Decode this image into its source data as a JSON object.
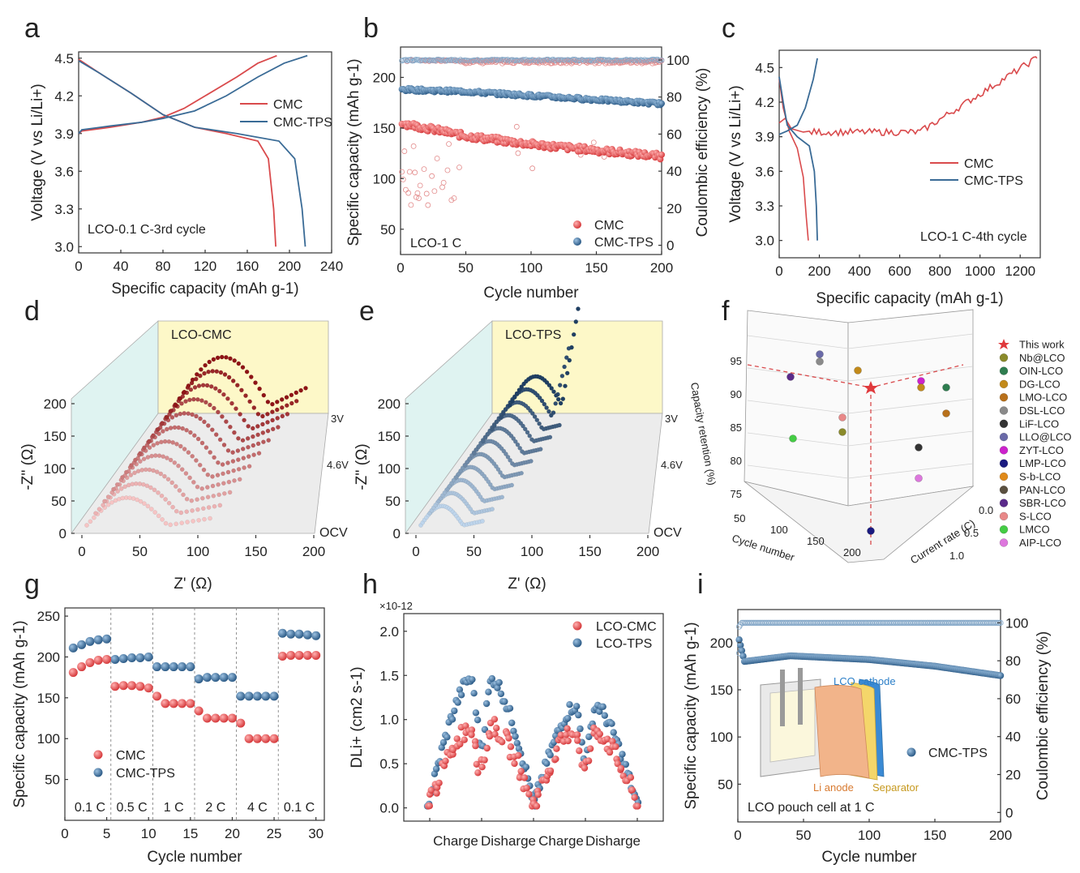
{
  "panels": {
    "a": "a",
    "b": "b",
    "c": "c",
    "d": "d",
    "e": "e",
    "f": "f",
    "g": "g",
    "h": "h",
    "i": "i"
  },
  "colors": {
    "cmc": "#d94a4c",
    "tps": "#3a6b96"
  },
  "chart_data": [
    {
      "id": "a",
      "type": "line",
      "title": "",
      "xlabel": "Specific capacity (mAh g-1)",
      "ylabel": "Voltage (V vs Li/Li+)",
      "xlim": [
        0,
        240
      ],
      "ylim": [
        2.95,
        4.55
      ],
      "xticks": [
        "0",
        "40",
        "80",
        "120",
        "160",
        "200",
        "240"
      ],
      "yticks": [
        "3.0",
        "3.3",
        "3.6",
        "3.9",
        "4.2",
        "4.5"
      ],
      "annotation": "LCO-0.1 C-3rd cycle",
      "series": [
        {
          "name": "CMC",
          "charge": [
            [
              0,
              3.9
            ],
            [
              3,
              3.92
            ],
            [
              30,
              3.95
            ],
            [
              60,
              3.99
            ],
            [
              80,
              4.03
            ],
            [
              100,
              4.1
            ],
            [
              120,
              4.2
            ],
            [
              150,
              4.35
            ],
            [
              170,
              4.46
            ],
            [
              188,
              4.52
            ]
          ],
          "discharge": [
            [
              0,
              4.49
            ],
            [
              20,
              4.38
            ],
            [
              50,
              4.22
            ],
            [
              80,
              4.05
            ],
            [
              110,
              3.95
            ],
            [
              140,
              3.9
            ],
            [
              170,
              3.84
            ],
            [
              180,
              3.7
            ],
            [
              185,
              3.3
            ],
            [
              187,
              3.0
            ]
          ]
        },
        {
          "name": "CMC-TPS",
          "charge": [
            [
              0,
              3.9
            ],
            [
              3,
              3.93
            ],
            [
              30,
              3.96
            ],
            [
              60,
              3.99
            ],
            [
              80,
              4.02
            ],
            [
              110,
              4.08
            ],
            [
              140,
              4.2
            ],
            [
              170,
              4.35
            ],
            [
              195,
              4.46
            ],
            [
              217,
              4.52
            ]
          ],
          "discharge": [
            [
              0,
              4.48
            ],
            [
              20,
              4.38
            ],
            [
              50,
              4.22
            ],
            [
              80,
              4.05
            ],
            [
              110,
              3.95
            ],
            [
              150,
              3.9
            ],
            [
              190,
              3.84
            ],
            [
              205,
              3.7
            ],
            [
              212,
              3.3
            ],
            [
              215,
              3.0
            ]
          ]
        }
      ]
    },
    {
      "id": "b",
      "type": "scatter",
      "xlabel": "Cycle number",
      "ylabel": "Specific capacity (mAh g-1)",
      "y2label": "Coulombic efficiency (%)",
      "xlim": [
        0,
        200
      ],
      "ylim": [
        25,
        230
      ],
      "y2lim": [
        -5,
        107
      ],
      "xticks": [
        "0",
        "50",
        "100",
        "150",
        "200"
      ],
      "yticks": [
        "50",
        "100",
        "150",
        "200"
      ],
      "y2ticks": [
        "0",
        "20",
        "40",
        "60",
        "80",
        "100"
      ],
      "annotation": "LCO-1 C",
      "series": [
        {
          "name": "CMC",
          "capacity_trend": [
            [
              1,
              155
            ],
            [
              50,
              142
            ],
            [
              100,
              134
            ],
            [
              150,
              128
            ],
            [
              200,
              122
            ]
          ]
        },
        {
          "name": "CMC-TPS",
          "capacity_trend": [
            [
              1,
              188
            ],
            [
              50,
              186
            ],
            [
              100,
              182
            ],
            [
              150,
              178
            ],
            [
              200,
              174
            ]
          ]
        }
      ]
    },
    {
      "id": "c",
      "type": "line",
      "xlabel": "Specific capacity (mAh g-1)",
      "ylabel": "Voltage (V vs Li/Li+)",
      "xlim": [
        0,
        1300
      ],
      "ylim": [
        2.85,
        4.65
      ],
      "xticks": [
        "0",
        "200",
        "400",
        "600",
        "800",
        "1000",
        "1200"
      ],
      "yticks": [
        "3.0",
        "3.3",
        "3.6",
        "3.9",
        "4.2",
        "4.5"
      ],
      "annotation": "LCO-1 C-4th cycle",
      "series": [
        {
          "name": "CMC"
        },
        {
          "name": "CMC-TPS"
        }
      ]
    },
    {
      "id": "d",
      "type": "3d-line",
      "title": "LCO-CMC",
      "xlabel": "Z' (Ω)",
      "ylabel": "-Z'' (Ω)",
      "xticks": [
        "0",
        "50",
        "100",
        "150",
        "200"
      ],
      "yticks": [
        "0",
        "50",
        "100",
        "150",
        "200"
      ],
      "depth_labels": [
        "3V",
        "4.6V",
        "OCV"
      ]
    },
    {
      "id": "e",
      "type": "3d-line",
      "title": "LCO-TPS",
      "xlabel": "Z' (Ω)",
      "ylabel": "-Z'' (Ω)",
      "xticks": [
        "0",
        "50",
        "100",
        "150",
        "200"
      ],
      "yticks": [
        "0",
        "50",
        "100",
        "150",
        "200"
      ],
      "depth_labels": [
        "3V",
        "4.6V",
        "OCV"
      ]
    },
    {
      "id": "f",
      "type": "3d-scatter",
      "zlabel": "Capacity retention (%)",
      "xlabel": "Cycle number",
      "ylabel": "Current rate (C)",
      "zticks": [
        "75",
        "80",
        "85",
        "90",
        "95"
      ],
      "xticks": [
        "50",
        "100",
        "150",
        "200"
      ],
      "yticks": [
        "0.0",
        "0.5",
        "1.0"
      ],
      "legend": [
        {
          "name": "This work",
          "color": "#e0393c",
          "marker": "star"
        },
        {
          "name": "Nb@LCO",
          "color": "#8a8a2a"
        },
        {
          "name": "OIN-LCO",
          "color": "#2e7d4f"
        },
        {
          "name": "DG-LCO",
          "color": "#c28a1a"
        },
        {
          "name": "LMO-LCO",
          "color": "#b8701a"
        },
        {
          "name": "DSL-LCO",
          "color": "#8a8a8a"
        },
        {
          "name": "LiF-LCO",
          "color": "#333333"
        },
        {
          "name": "LLO@LCO",
          "color": "#6a6aa8"
        },
        {
          "name": "ZYT-LCO",
          "color": "#cc22cc"
        },
        {
          "name": "LMP-LCO",
          "color": "#1a1a80"
        },
        {
          "name": "S-b-LCO",
          "color": "#e08a1a"
        },
        {
          "name": "PAN-LCO",
          "color": "#5a5040"
        },
        {
          "name": "SBR-LCO",
          "color": "#5a2a8a"
        },
        {
          "name": "S-LCO",
          "color": "#e88888"
        },
        {
          "name": "LMCO",
          "color": "#44cc44"
        },
        {
          "name": "AIP-LCO",
          "color": "#dd77dd"
        }
      ]
    },
    {
      "id": "g",
      "type": "scatter",
      "xlabel": "Cycle number",
      "ylabel": "Specific capacity (mAh g-1)",
      "xlim": [
        0,
        31
      ],
      "ylim": [
        0,
        260
      ],
      "xticks": [
        "0",
        "5",
        "10",
        "15",
        "20",
        "25",
        "30"
      ],
      "yticks": [
        "50",
        "100",
        "150",
        "200",
        "250"
      ],
      "rates": [
        "0.1 C",
        "0.5 C",
        "1 C",
        "2 C",
        "4 C",
        "0.1 C"
      ],
      "series": [
        {
          "name": "CMC",
          "values": [
            181,
            188,
            193,
            196,
            197,
            164,
            165,
            165,
            164,
            162,
            152,
            143,
            143,
            143,
            143,
            134,
            125,
            125,
            125,
            125,
            119,
            100,
            100,
            100,
            100,
            201,
            202,
            202,
            202,
            202
          ]
        },
        {
          "name": "CMC-TPS",
          "values": [
            211,
            215,
            219,
            221,
            222,
            197,
            198,
            199,
            199,
            200,
            188,
            188,
            188,
            188,
            188,
            173,
            175,
            175,
            175,
            175,
            152,
            152,
            152,
            152,
            152,
            229,
            228,
            228,
            227,
            226
          ]
        }
      ]
    },
    {
      "id": "h",
      "type": "scatter",
      "ylabel": "DLi+ (cm2 s-1)",
      "multiplier": "×10-12",
      "ylim": [
        -0.15,
        2.2
      ],
      "yticks": [
        "0.0",
        "0.5",
        "1.0",
        "1.5",
        "2.0"
      ],
      "xticks": [
        "Charge",
        "Disharge",
        "Charge",
        "Disharge"
      ],
      "series": [
        {
          "name": "LCO-CMC",
          "peak": 1.0
        },
        {
          "name": "LCO-TPS",
          "peak": 1.58
        }
      ]
    },
    {
      "id": "i",
      "type": "scatter",
      "xlabel": "Cycle number",
      "ylabel": "Specific capacity (mAh g-1)",
      "y2label": "Coulombic efficiency (%)",
      "xlim": [
        0,
        200
      ],
      "ylim": [
        10,
        235
      ],
      "y2lim": [
        -5,
        107
      ],
      "xticks": [
        "0",
        "50",
        "100",
        "150",
        "200"
      ],
      "yticks": [
        "50",
        "100",
        "150",
        "200"
      ],
      "y2ticks": [
        "0",
        "20",
        "40",
        "60",
        "80",
        "100"
      ],
      "series": [
        {
          "name": "CMC-TPS",
          "capacity_trend": [
            [
              1,
              203
            ],
            [
              5,
              180
            ],
            [
              40,
              186
            ],
            [
              100,
              182
            ],
            [
              150,
              175
            ],
            [
              200,
              165
            ]
          ]
        }
      ],
      "inset": {
        "caption": "LCO pouch cell at 1 C",
        "labels": [
          "LCO cathode",
          "Li anode",
          "Separator"
        ]
      }
    }
  ]
}
